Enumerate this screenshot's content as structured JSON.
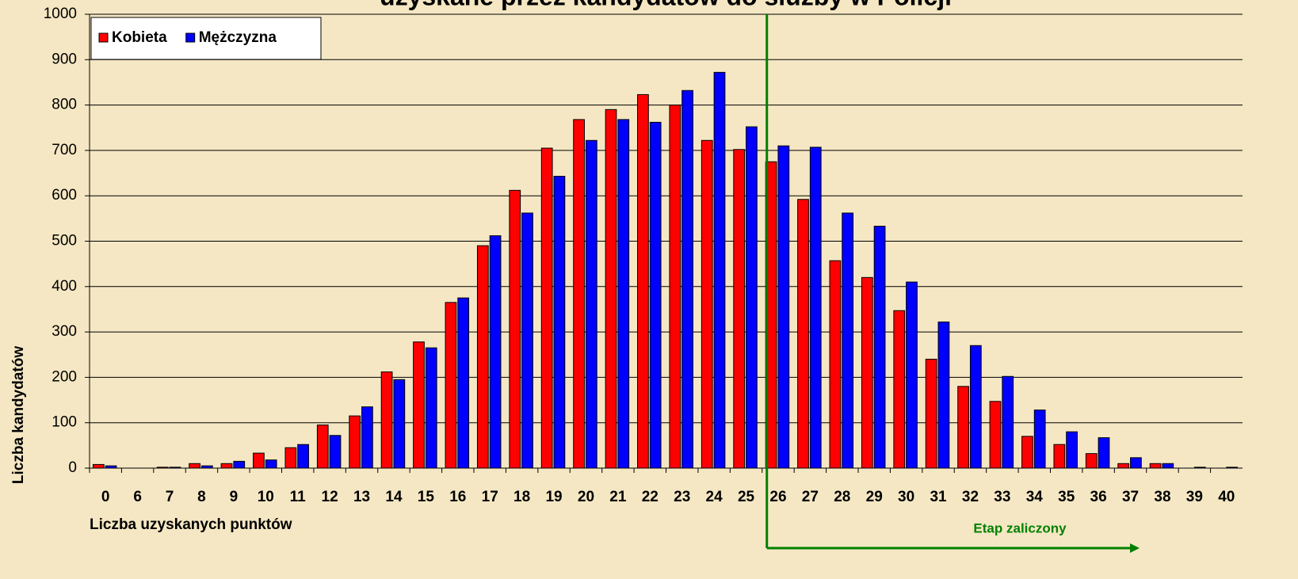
{
  "chart_data": {
    "type": "bar",
    "title": "uzyskane przez kandydatów do służby w Policji",
    "x_label": "Liczba uzyskanych punktów",
    "y_label": "Liczba kandydatów",
    "categories": [
      "0",
      "6",
      "7",
      "8",
      "9",
      "10",
      "11",
      "12",
      "13",
      "14",
      "15",
      "16",
      "17",
      "18",
      "19",
      "20",
      "21",
      "22",
      "23",
      "24",
      "25",
      "26",
      "27",
      "28",
      "29",
      "30",
      "31",
      "32",
      "33",
      "34",
      "35",
      "36",
      "37",
      "38",
      "39",
      "40"
    ],
    "series": [
      {
        "name": "Kobieta",
        "color": "#ff0000",
        "values": [
          8,
          0,
          2,
          10,
          10,
          33,
          45,
          95,
          115,
          212,
          278,
          365,
          490,
          612,
          705,
          768,
          790,
          823,
          800,
          722,
          702,
          675,
          592,
          457,
          420,
          347,
          240,
          180,
          147,
          70,
          52,
          32,
          10,
          10,
          0,
          0
        ]
      },
      {
        "name": "Mężczyzna",
        "color": "#0000ff",
        "values": [
          5,
          0,
          2,
          5,
          15,
          18,
          52,
          72,
          135,
          195,
          265,
          375,
          512,
          562,
          643,
          722,
          768,
          762,
          832,
          872,
          752,
          710,
          707,
          562,
          533,
          410,
          322,
          270,
          202,
          128,
          80,
          67,
          23,
          10,
          2,
          2
        ]
      }
    ],
    "ylim": [
      0,
      1000
    ],
    "yticks": [
      0,
      100,
      200,
      300,
      400,
      500,
      600,
      700,
      800,
      900,
      1000
    ],
    "grid": true,
    "legend": "top-left",
    "annotations": [
      {
        "text": "Etap zaliczony",
        "x": "26",
        "color": "#008000"
      }
    ]
  }
}
